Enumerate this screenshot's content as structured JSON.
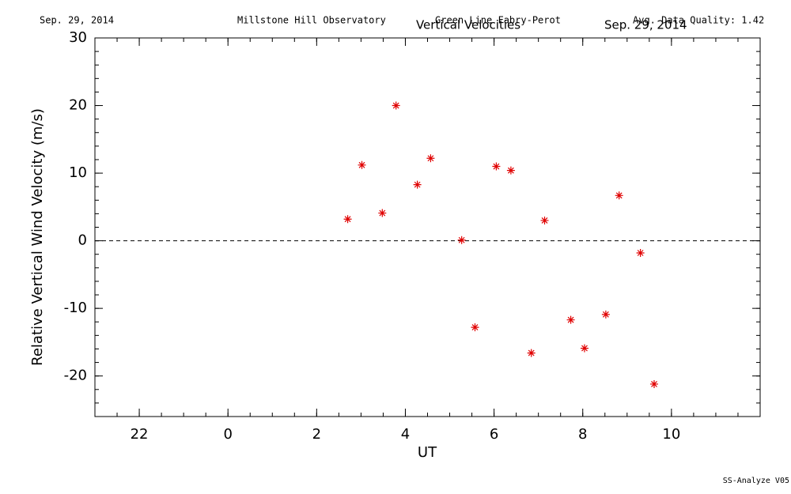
{
  "chart_data": {
    "type": "scatter",
    "header": {
      "date_left": "Sep. 29, 2014",
      "observatory": "Millstone Hill Observatory",
      "instrument": "Green Line Fabry-Perot",
      "quality": "Avg. Data Quality: 1.42",
      "date_right": "Sep. 29, 2014"
    },
    "title": "Vertical Velocities",
    "footer": "SS-Analyze V05",
    "x_label": "UT",
    "y_label": "Relative Vertical Wind Velocity (m/s)",
    "xlim": [
      -3,
      12
    ],
    "xticks": [
      {
        "value": -2,
        "label": "22"
      },
      0,
      2,
      4,
      6,
      8,
      10
    ],
    "x_minor_step": 0.5,
    "ylim": [
      -26,
      30
    ],
    "yticks": [
      -20,
      -10,
      0,
      10,
      20,
      30
    ],
    "y_minor_step": 2,
    "reference_line": 0,
    "series": [
      {
        "color": "#e00000",
        "x": [
          2.7,
          3.02,
          3.48,
          3.79,
          4.27,
          4.57,
          5.27,
          5.57,
          6.05,
          6.38,
          6.84,
          7.14,
          7.73,
          8.04,
          8.52,
          8.82,
          9.3,
          9.61
        ],
        "values": [
          3.2,
          11.2,
          4.1,
          20.0,
          8.3,
          12.2,
          0.1,
          -12.8,
          11.0,
          10.4,
          -16.6,
          3.0,
          -11.7,
          -15.9,
          -10.9,
          6.7,
          -1.8,
          -21.2
        ]
      }
    ]
  }
}
